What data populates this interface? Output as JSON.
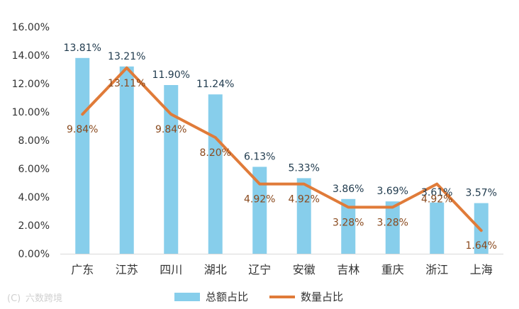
{
  "chart_data": {
    "type": "bar",
    "categories": [
      "广东",
      "江苏",
      "四川",
      "湖北",
      "辽宁",
      "安徽",
      "吉林",
      "重庆",
      "浙江",
      "上海"
    ],
    "series": [
      {
        "name": "总额占比",
        "type": "bar",
        "color": "#87CEEB",
        "values": [
          13.81,
          13.21,
          11.9,
          11.24,
          6.13,
          5.33,
          3.86,
          3.69,
          3.61,
          3.57
        ],
        "labels": [
          "13.81%",
          "13.21%",
          "11.90%",
          "11.24%",
          "6.13%",
          "5.33%",
          "3.86%",
          "3.69%",
          "3.61%",
          "3.57%"
        ]
      },
      {
        "name": "数量占比",
        "type": "line",
        "color": "#E07B39",
        "values": [
          9.84,
          13.11,
          9.84,
          8.2,
          4.92,
          4.92,
          3.28,
          3.28,
          4.92,
          1.64
        ],
        "labels": [
          "9.84%",
          "13.11%",
          "9.84%",
          "8.20%",
          "4.92%",
          "4.92%",
          "3.28%",
          "3.28%",
          "4.92%",
          "1.64%"
        ]
      }
    ],
    "ylim": [
      0,
      16
    ],
    "yticks": [
      "0.00%",
      "2.00%",
      "4.00%",
      "6.00%",
      "8.00%",
      "10.00%",
      "12.00%",
      "14.00%",
      "16.00%"
    ],
    "grid": false,
    "legend": "bottom-center"
  },
  "watermark": "六数跨境",
  "watermark_icon": "logo-icon"
}
